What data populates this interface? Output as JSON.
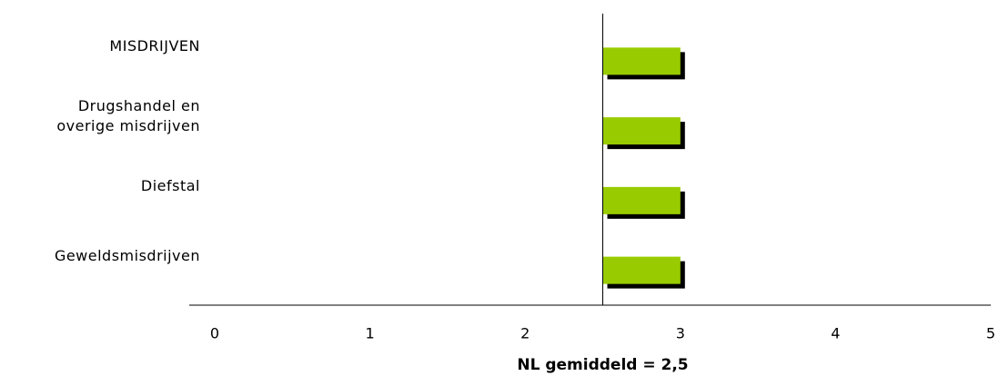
{
  "chart_data": {
    "type": "hbar",
    "categories": [
      "MISDRIJVEN",
      "Drugshandel en\noverige misdrijven",
      "Diefstal",
      "Geweldsmisdrijven"
    ],
    "values": [
      3.0,
      3.0,
      3.0,
      3.0
    ],
    "color": "#99cc00",
    "xlim": [
      0,
      5
    ],
    "xticks": [
      0,
      1,
      2,
      3,
      4,
      5
    ],
    "reference_line": {
      "value": 2.5,
      "label": "NL gemiddeld = 2,5"
    }
  }
}
